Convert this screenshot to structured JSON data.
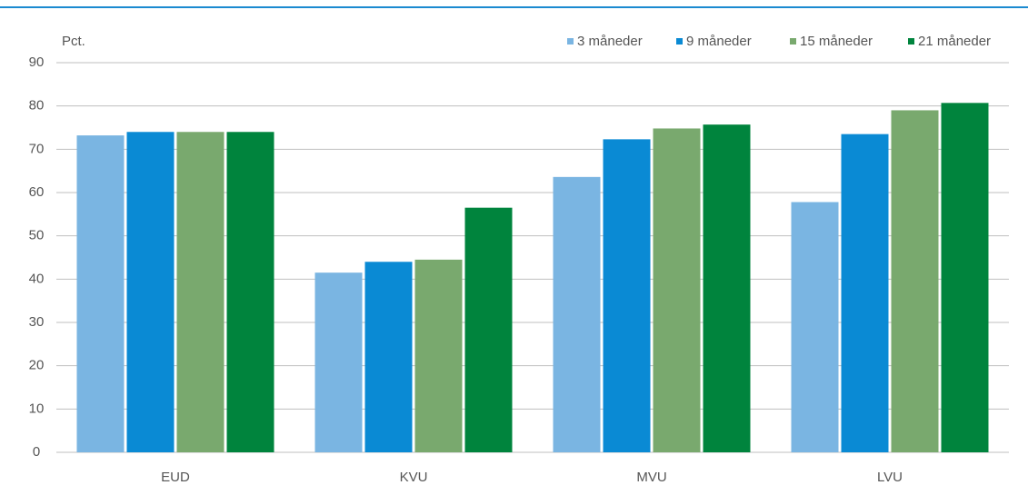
{
  "chart_data": {
    "type": "bar",
    "y_label": "Pct.",
    "categories": [
      "EUD",
      "KVU",
      "MVU",
      "LVU"
    ],
    "series": [
      {
        "name": "3 måneder",
        "color": "#7ab5e2",
        "values": [
          73.2,
          41.5,
          63.6,
          57.8
        ]
      },
      {
        "name": "9 måneder",
        "color": "#0a8ad4",
        "values": [
          74,
          44,
          72.3,
          73.5
        ]
      },
      {
        "name": "15 måneder",
        "color": "#79a96e",
        "values": [
          74,
          44.5,
          74.8,
          79
        ]
      },
      {
        "name": "21 måneder",
        "color": "#00843d",
        "values": [
          74,
          56.5,
          75.7,
          80.7
        ]
      }
    ],
    "ylim": [
      0,
      90
    ],
    "yticks": [
      0,
      10,
      20,
      30,
      40,
      50,
      60,
      70,
      80,
      90
    ],
    "grid": true,
    "legend": "top-right"
  }
}
